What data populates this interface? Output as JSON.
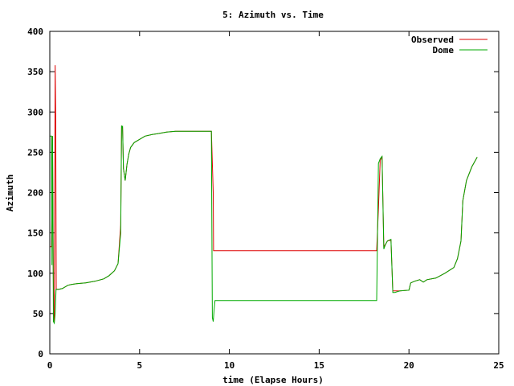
{
  "chart_data": {
    "type": "line",
    "title": "5: Azimuth vs. Time",
    "xlabel": "time (Elapse Hours)",
    "ylabel": "Azimuth",
    "xlim": [
      0,
      25
    ],
    "ylim": [
      0,
      400
    ],
    "xticks": [
      0,
      5,
      10,
      15,
      20,
      25
    ],
    "yticks": [
      0,
      50,
      100,
      150,
      200,
      250,
      300,
      350,
      400
    ],
    "grid": false,
    "legend_position": "top-right",
    "series": [
      {
        "name": "Observed",
        "color": "#dd0000",
        "x": [
          0.0,
          0.05,
          0.1,
          0.15,
          0.2,
          0.25,
          0.3,
          0.33,
          0.36,
          0.4,
          0.45,
          0.5,
          0.7,
          1.0,
          1.2,
          1.5,
          2.0,
          2.5,
          3.0,
          3.3,
          3.6,
          3.8,
          3.95,
          4.0,
          4.02,
          4.05,
          4.1,
          4.2,
          4.3,
          4.4,
          4.5,
          4.7,
          5.0,
          5.3,
          5.7,
          6.0,
          6.5,
          7.0,
          7.5,
          8.0,
          8.5,
          8.9,
          9.0,
          9.1,
          9.12,
          18.2,
          18.3,
          18.4,
          18.5,
          18.6,
          18.7,
          18.8,
          19.0,
          19.1,
          19.2,
          19.5,
          20.0,
          20.1,
          20.3,
          20.6,
          20.8,
          21.0,
          21.5,
          22.0,
          22.5,
          22.7,
          22.9,
          23.0,
          23.2,
          23.5,
          23.8
        ],
        "y": [
          133,
          133,
          133,
          270,
          80,
          40,
          358,
          288,
          80,
          80,
          80,
          80,
          81,
          85,
          86,
          87,
          88,
          90,
          93,
          97,
          103,
          112,
          160,
          283,
          280,
          282,
          230,
          215,
          235,
          248,
          256,
          262,
          266,
          270,
          272,
          273,
          275,
          276,
          276,
          276,
          276,
          276,
          276,
          200,
          128,
          128,
          180,
          240,
          245,
          133,
          136,
          140,
          141,
          78,
          78,
          78,
          79,
          88,
          90,
          92,
          89,
          92,
          94,
          100,
          107,
          118,
          140,
          190,
          215,
          232,
          244
        ]
      },
      {
        "name": "Dome",
        "color": "#00aa00",
        "x": [
          0.0,
          0.05,
          0.1,
          0.12,
          0.15,
          0.2,
          0.25,
          0.3,
          0.35,
          0.4,
          0.45,
          0.5,
          0.7,
          1.0,
          1.2,
          1.5,
          2.0,
          2.5,
          3.0,
          3.3,
          3.6,
          3.8,
          3.95,
          4.0,
          4.02,
          4.05,
          4.1,
          4.2,
          4.3,
          4.4,
          4.5,
          4.7,
          5.0,
          5.3,
          5.7,
          6.0,
          6.5,
          7.0,
          7.5,
          8.0,
          8.5,
          8.9,
          9.0,
          9.05,
          9.1,
          9.15,
          9.2,
          9.3,
          18.2,
          18.3,
          18.4,
          18.5,
          18.6,
          18.7,
          18.8,
          19.0,
          19.1,
          19.2,
          19.5,
          20.0,
          20.1,
          20.3,
          20.6,
          20.8,
          21.0,
          21.5,
          22.0,
          22.5,
          22.7,
          22.9,
          23.0,
          23.2,
          23.5,
          23.8
        ],
        "y": [
          270,
          270,
          270,
          110,
          270,
          40,
          38,
          50,
          80,
          80,
          80,
          80,
          81,
          85,
          86,
          87,
          88,
          90,
          93,
          97,
          103,
          112,
          150,
          283,
          281,
          282,
          230,
          215,
          235,
          248,
          256,
          262,
          266,
          270,
          272,
          273,
          275,
          276,
          276,
          276,
          276,
          276,
          276,
          45,
          40,
          55,
          66,
          66,
          66,
          236,
          242,
          245,
          130,
          136,
          140,
          142,
          76,
          76,
          78,
          79,
          88,
          90,
          92,
          89,
          92,
          94,
          100,
          107,
          118,
          140,
          190,
          215,
          232,
          244
        ]
      }
    ]
  }
}
